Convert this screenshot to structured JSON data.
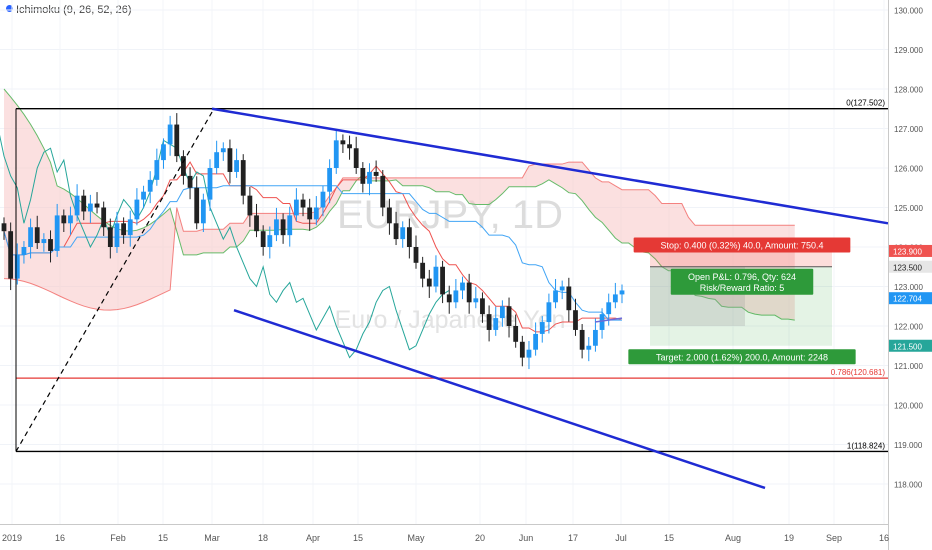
{
  "indicator": {
    "label": "Ichimoku (9, 26, 52, 26)"
  },
  "watermark": {
    "symbol": "EURJPY, 1D",
    "description": "Euro / Japanese Yen"
  },
  "chart_data": {
    "type": "candlestick",
    "symbol_watermark": "EURJPY, 1D",
    "y_axis": {
      "range": [
        118.0,
        130.2
      ],
      "ticks": [
        "130.000",
        "129.000",
        "128.000",
        "127.000",
        "126.000",
        "125.000",
        "124.000",
        "123.000",
        "122.000",
        "121.000",
        "120.000",
        "119.000",
        "118.000"
      ]
    },
    "x_axis": {
      "ticks": [
        "2019",
        "16",
        "Feb",
        "15",
        "Mar",
        "18",
        "Apr",
        "15",
        "May",
        "20",
        "Jun",
        "17",
        "Jul",
        "15",
        "Aug",
        "19",
        "Sep",
        "16"
      ]
    },
    "price_labels": [
      {
        "value": "123.900",
        "color": "#ef5350"
      },
      {
        "value": "123.500",
        "color": "#e6e6e6"
      },
      {
        "value": "122.704",
        "color": "#2196f3"
      },
      {
        "value": "121.500",
        "color": "#26a69a"
      }
    ],
    "horizontal_levels": [
      {
        "value": 127.502,
        "label": "0(127.502)",
        "color": "#000000"
      },
      {
        "value": 120.681,
        "label": "0.786(120.681)",
        "color": "#e53935"
      },
      {
        "value": 118.824,
        "label": "1(118.824)",
        "color": "#000000"
      }
    ],
    "trendlines": [
      {
        "name": "upper",
        "from": [
          "Mar 1",
          127.5
        ],
        "to": [
          "Sep 16",
          124.6
        ]
      },
      {
        "name": "lower",
        "from": [
          "Mar 5",
          122.4
        ],
        "to": [
          "Aug 14",
          117.9
        ]
      }
    ],
    "position": {
      "stop": "Stop: 0.400 (0.32%) 40.0, Amount: 750.4",
      "open_pl": "Open P&L: 0.796, Qty: 624",
      "risk_reward": "Risk/Reward Ratio: 5",
      "target": "Target: 2.000 (1.62%) 200.0, Amount: 2248",
      "entry": 123.5,
      "stop_price": 123.9,
      "target_price": 121.5
    },
    "close_series": [
      124.4,
      123.2,
      123.8,
      124.0,
      124.5,
      124.1,
      124.2,
      123.9,
      124.8,
      124.6,
      124.8,
      125.3,
      124.9,
      125.1,
      125.0,
      124.5,
      124.0,
      124.6,
      124.3,
      124.7,
      125.2,
      125.4,
      125.7,
      126.2,
      126.6,
      127.1,
      126.3,
      125.8,
      125.5,
      124.6,
      125.2,
      126.0,
      126.4,
      126.5,
      125.9,
      126.2,
      125.3,
      124.8,
      124.4,
      124.0,
      124.3,
      124.7,
      124.3,
      124.8,
      125.2,
      125.0,
      124.7,
      125.0,
      125.4,
      126.0,
      126.7,
      126.6,
      126.5,
      126.0,
      125.6,
      125.9,
      125.8,
      125.0,
      124.6,
      124.2,
      124.5,
      124.0,
      123.6,
      123.2,
      123.0,
      123.5,
      122.8,
      122.6,
      122.9,
      123.1,
      122.6,
      122.7,
      122.3,
      121.9,
      122.2,
      122.5,
      122.0,
      121.6,
      121.2,
      121.4,
      121.8,
      122.1,
      122.6,
      122.9,
      123.0,
      122.4,
      121.9,
      121.4,
      121.5,
      121.9,
      122.3,
      122.6,
      122.8,
      122.9
    ]
  }
}
